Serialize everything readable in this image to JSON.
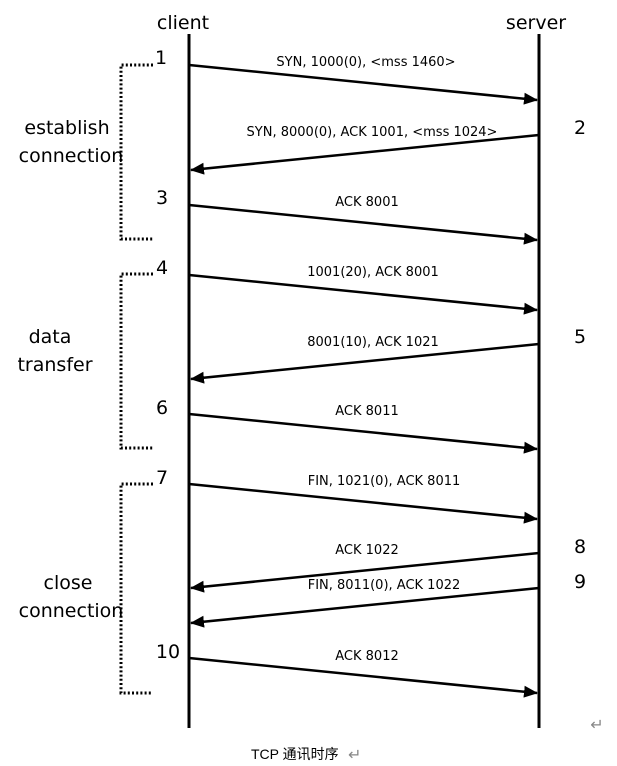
{
  "headers": {
    "client": "client",
    "server": "server"
  },
  "phases": [
    {
      "lines": [
        "establish",
        "connection"
      ]
    },
    {
      "lines": [
        "data",
        "transfer"
      ]
    },
    {
      "lines": [
        "close",
        "connection"
      ]
    }
  ],
  "messages": [
    {
      "step": "1",
      "side": "client",
      "direction": "to-server",
      "label": "SYN, 1000(0), <mss 1460>"
    },
    {
      "step": "2",
      "side": "server",
      "direction": "to-client",
      "label": "SYN, 8000(0), ACK 1001, <mss 1024>"
    },
    {
      "step": "3",
      "side": "client",
      "direction": "to-server",
      "label": "ACK 8001"
    },
    {
      "step": "4",
      "side": "client",
      "direction": "to-server",
      "label": "1001(20), ACK 8001"
    },
    {
      "step": "5",
      "side": "server",
      "direction": "to-client",
      "label": "8001(10), ACK 1021"
    },
    {
      "step": "6",
      "side": "client",
      "direction": "to-server",
      "label": "ACK 8011"
    },
    {
      "step": "7",
      "side": "client",
      "direction": "to-server",
      "label": "FIN, 1021(0), ACK 8011"
    },
    {
      "step": "8",
      "side": "server",
      "direction": "to-client",
      "label": "ACK 1022"
    },
    {
      "step": "9",
      "side": "server",
      "direction": "to-client",
      "label": "FIN, 8011(0), ACK 1022"
    },
    {
      "step": "10",
      "side": "client",
      "direction": "to-server",
      "label": "ACK 8012"
    }
  ],
  "caption": "TCP 通讯时序",
  "return_mark": "↵",
  "caption_mark": "↵"
}
